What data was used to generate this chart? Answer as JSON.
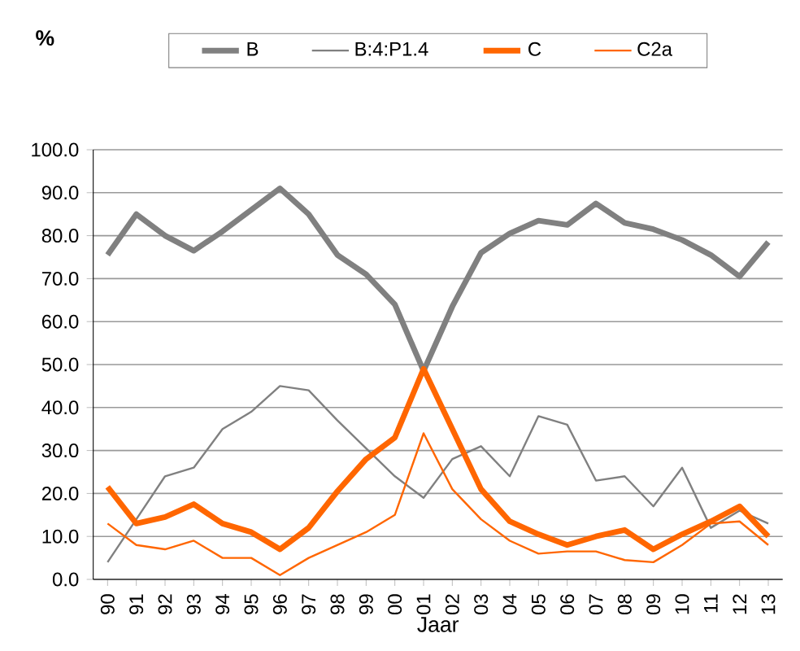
{
  "chart_data": {
    "type": "line",
    "xlabel": "Jaar",
    "ylabel": "%",
    "categories": [
      "90",
      "91",
      "92",
      "93",
      "94",
      "95",
      "96",
      "97",
      "98",
      "99",
      "00",
      "01",
      "02",
      "03",
      "04",
      "05",
      "06",
      "07",
      "08",
      "09",
      "10",
      "11",
      "12",
      "13"
    ],
    "series": [
      {
        "name": "B",
        "color": "#808080",
        "values": [
          75.5,
          85,
          80,
          76.5,
          81,
          86,
          91,
          85,
          75.5,
          71,
          64,
          48.5,
          63.5,
          76,
          80.5,
          83.5,
          82.5,
          87.5,
          83,
          81.5,
          79,
          75.5,
          70.5,
          78.5
        ]
      },
      {
        "name": "B:4:P1.4",
        "color": "#808080",
        "values": [
          4,
          14,
          24,
          26,
          35,
          39,
          45,
          44,
          37,
          30.5,
          24,
          19,
          28,
          31,
          24,
          38,
          36,
          23,
          24,
          17,
          26,
          12,
          16,
          13
        ]
      },
      {
        "name": "C",
        "color": "#ff6600",
        "values": [
          21.5,
          13,
          14.5,
          17.5,
          13,
          11,
          7,
          12,
          20.5,
          28,
          33,
          49,
          35,
          21,
          13.5,
          10.5,
          8,
          10,
          11.5,
          7,
          10.5,
          13.5,
          17,
          10
        ]
      },
      {
        "name": "C2a",
        "color": "#ff6600",
        "values": [
          13,
          8,
          7,
          9,
          5,
          5,
          1,
          5,
          8,
          11,
          15,
          34,
          21,
          14,
          9,
          6,
          6.5,
          6.5,
          4.5,
          4,
          8,
          13,
          13.5,
          8
        ]
      }
    ],
    "ylim": [
      0,
      100
    ],
    "yticks": [
      {
        "value": 0,
        "label": "0.0"
      },
      {
        "value": 10,
        "label": "10.0"
      },
      {
        "value": 20,
        "label": "20.0"
      },
      {
        "value": 30,
        "label": "30.0"
      },
      {
        "value": 40,
        "label": "40.0"
      },
      {
        "value": 50,
        "label": "50.0"
      },
      {
        "value": 60,
        "label": "60.0"
      },
      {
        "value": 70,
        "label": "70.0"
      },
      {
        "value": 80,
        "label": "80.0"
      },
      {
        "value": 90,
        "label": "90.0"
      },
      {
        "value": 100,
        "label": "100.0"
      }
    ],
    "grid": "y",
    "legend": "top",
    "marker": "none",
    "line_style": "solid"
  }
}
